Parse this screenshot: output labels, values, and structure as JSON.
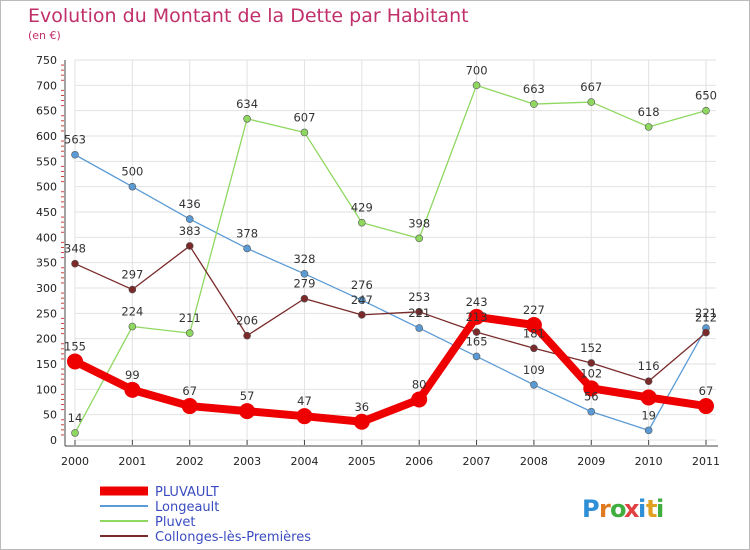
{
  "chart_data": {
    "type": "line",
    "title": "Evolution du Montant de la Dette par Habitant",
    "subtitle": "(en €)",
    "x": [
      "2000",
      "2001",
      "2002",
      "2003",
      "2004",
      "2005",
      "2006",
      "2007",
      "2008",
      "2009",
      "2010",
      "2011"
    ],
    "ylim": [
      0,
      750
    ],
    "yticks": [
      "0",
      "50",
      "100",
      "150",
      "200",
      "250",
      "300",
      "350",
      "400",
      "450",
      "500",
      "550",
      "600",
      "650",
      "700",
      "750"
    ],
    "grid": true,
    "legend_position": "bottom-left",
    "series": [
      {
        "name": "PLUVAULT",
        "color": "#ee0000",
        "values": [
          155,
          99,
          67,
          57,
          47,
          36,
          80,
          243,
          227,
          102,
          84,
          67
        ],
        "labels": [
          "155",
          "99",
          "67",
          "57",
          "47",
          "36",
          "80",
          "243",
          "227",
          "102",
          "",
          "67"
        ]
      },
      {
        "name": "Longeault",
        "color": "#5b9bd5",
        "values": [
          563,
          500,
          436,
          378,
          328,
          276,
          221,
          165,
          109,
          56,
          19,
          221
        ],
        "labels": [
          "563",
          "500",
          "436",
          "378",
          "328",
          "276",
          "221",
          "165",
          "109",
          "56",
          "19",
          "221"
        ]
      },
      {
        "name": "Pluvet",
        "color": "#8fd860",
        "values": [
          14,
          224,
          211,
          634,
          607,
          429,
          398,
          700,
          663,
          667,
          618,
          650
        ],
        "labels": [
          "14",
          "224",
          "211",
          "634",
          "607",
          "429",
          "398",
          "700",
          "663",
          "667",
          "618",
          "650"
        ]
      },
      {
        "name": "Collonges-lès-Premières",
        "color": "#7a2a2a",
        "values": [
          348,
          297,
          383,
          206,
          279,
          247,
          253,
          213,
          181,
          152,
          116,
          212
        ],
        "labels": [
          "348",
          "297",
          "383",
          "206",
          "279",
          "247",
          "253",
          "213",
          "181",
          "152",
          "116",
          "212"
        ]
      }
    ]
  },
  "brand": {
    "letters": [
      "P",
      "r",
      "o",
      "x",
      "i",
      "t",
      "i"
    ]
  }
}
